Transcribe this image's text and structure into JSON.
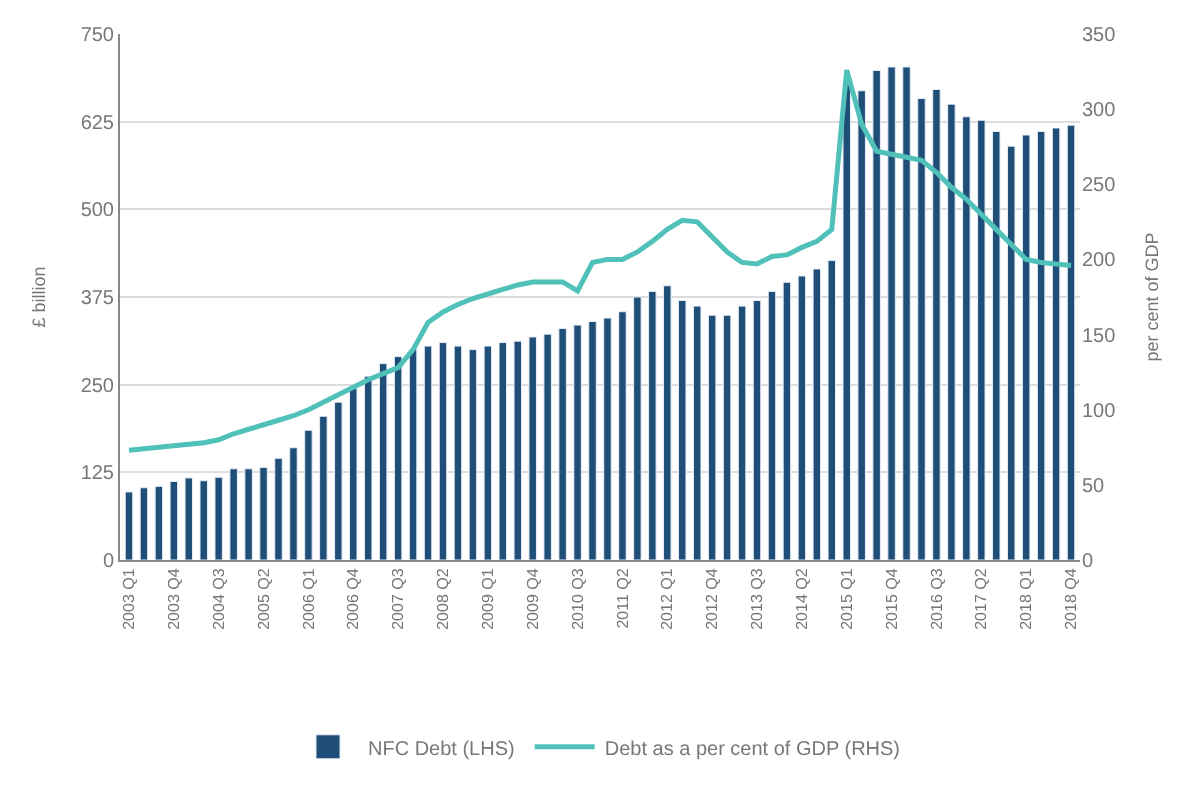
{
  "chart_data": {
    "type": "bar",
    "ylabel": "£ billion",
    "y2label": "per cent of GDP",
    "categories": [
      "2003 Q1",
      null,
      null,
      "2003 Q4",
      null,
      null,
      "2004 Q3",
      null,
      null,
      "2005 Q2",
      null,
      null,
      "2006 Q1",
      null,
      null,
      "2006 Q4",
      null,
      null,
      "2007 Q3",
      null,
      null,
      "2008 Q2",
      null,
      null,
      "2009 Q1",
      null,
      null,
      "2009 Q4",
      null,
      null,
      "2010 Q3",
      null,
      null,
      "2011 Q2",
      null,
      null,
      "2012 Q1",
      null,
      null,
      "2012 Q4",
      null,
      null,
      "2013 Q3",
      null,
      null,
      "2014 Q2",
      null,
      null,
      "2015 Q1",
      null,
      null,
      "2015 Q4",
      null,
      null,
      "2016 Q3",
      null,
      null,
      "2017 Q2",
      null,
      null,
      "2018 Q1",
      null,
      null,
      "2018 Q4"
    ],
    "series": [
      {
        "name": "NFC Debt (LHS)",
        "color": "#1f4e79",
        "values": [
          97,
          103,
          105,
          112,
          117,
          113,
          118,
          130,
          130,
          132,
          145,
          160,
          185,
          205,
          225,
          245,
          262,
          280,
          290,
          300,
          305,
          310,
          305,
          300,
          305,
          310,
          312,
          318,
          322,
          330,
          335,
          340,
          345,
          354,
          375,
          383,
          391,
          370,
          362,
          349,
          349,
          362,
          370,
          383,
          396,
          405,
          415,
          427,
          679,
          669,
          698,
          703,
          703,
          658,
          671,
          650,
          632,
          627,
          611,
          590,
          606,
          611,
          616,
          620
        ]
      },
      {
        "name": "Debt as a per cent of GDP (RHS)",
        "type": "line",
        "axis": "y2",
        "color": "#4fc1b8",
        "values": [
          73,
          74,
          75,
          76,
          77,
          78,
          80,
          84,
          87,
          90,
          93,
          96,
          100,
          105,
          110,
          115,
          120,
          124,
          128,
          140,
          158,
          165,
          170,
          174,
          177,
          180,
          183,
          185,
          185,
          185,
          179,
          198,
          200,
          200,
          205,
          212,
          220,
          226,
          225,
          215,
          205,
          198,
          197,
          202,
          203,
          208,
          212,
          220,
          326,
          290,
          272,
          270,
          268,
          266,
          258,
          248,
          240,
          230,
          220,
          210,
          200,
          198,
          197,
          196
        ]
      }
    ],
    "ylim": [
      0,
      750
    ],
    "yticks": [
      0,
      125,
      250,
      375,
      500,
      625,
      750
    ],
    "y2lim": [
      0,
      350
    ],
    "y2ticks": [
      0,
      50,
      100,
      150,
      200,
      250,
      300,
      350
    ],
    "grid": "y",
    "legend": "bottom",
    "marker": "none",
    "line_style": "solid"
  }
}
